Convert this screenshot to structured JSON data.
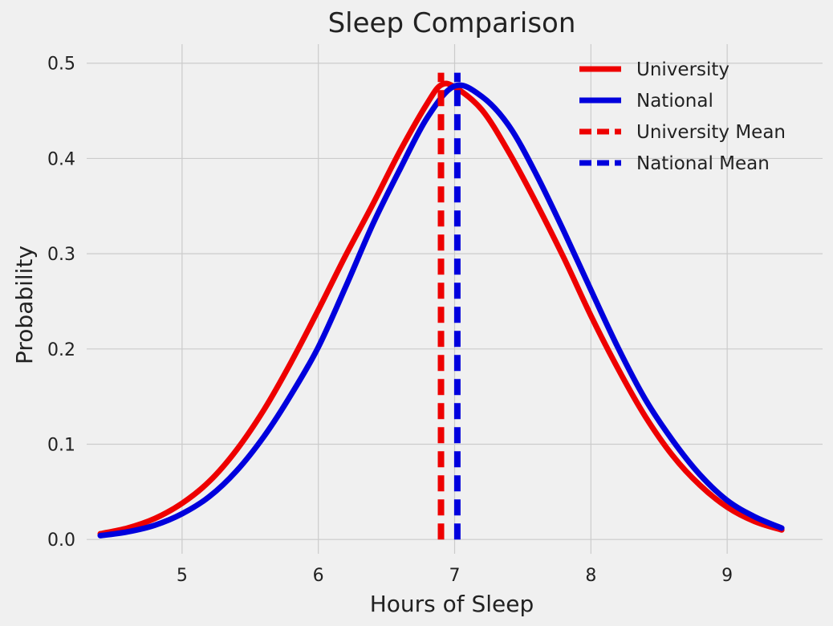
{
  "chart_data": {
    "type": "line",
    "title": "Sleep Comparison",
    "xlabel": "Hours of Sleep",
    "ylabel": "Probability",
    "xlim": [
      4.3,
      9.7
    ],
    "ylim": [
      -0.015,
      0.52
    ],
    "xticks": [
      5,
      6,
      7,
      8,
      9
    ],
    "yticks": [
      0.0,
      0.1,
      0.2,
      0.3,
      0.4,
      0.5
    ],
    "xtick_labels": [
      "5",
      "6",
      "7",
      "8",
      "9"
    ],
    "ytick_labels": [
      "0.0",
      "0.1",
      "0.2",
      "0.3",
      "0.4",
      "0.5"
    ],
    "grid": true,
    "legend_position": "top-right",
    "series": [
      {
        "name": "University",
        "style": "solid",
        "color": "#ee0000",
        "x": [
          4.4,
          4.6,
          4.8,
          5.0,
          5.2,
          5.4,
          5.6,
          5.8,
          6.0,
          6.2,
          6.4,
          6.6,
          6.8,
          6.9,
          7.0,
          7.2,
          7.4,
          7.6,
          7.8,
          8.0,
          8.2,
          8.4,
          8.6,
          8.8,
          9.0,
          9.2,
          9.4
        ],
        "y": [
          0.006,
          0.012,
          0.022,
          0.038,
          0.061,
          0.094,
          0.136,
          0.186,
          0.241,
          0.298,
          0.352,
          0.408,
          0.458,
          0.477,
          0.475,
          0.451,
          0.406,
          0.353,
          0.296,
          0.235,
          0.179,
          0.129,
          0.088,
          0.057,
          0.034,
          0.019,
          0.01
        ]
      },
      {
        "name": "National",
        "style": "solid",
        "color": "#0000dd",
        "x": [
          4.4,
          4.6,
          4.8,
          5.0,
          5.2,
          5.4,
          5.6,
          5.8,
          6.0,
          6.2,
          6.4,
          6.6,
          6.8,
          7.0,
          7.2,
          7.4,
          7.6,
          7.8,
          8.0,
          8.2,
          8.4,
          8.6,
          8.8,
          9.0,
          9.2,
          9.4
        ],
        "y": [
          0.004,
          0.008,
          0.015,
          0.027,
          0.045,
          0.072,
          0.108,
          0.152,
          0.202,
          0.265,
          0.331,
          0.389,
          0.443,
          0.476,
          0.465,
          0.434,
          0.383,
          0.324,
          0.262,
          0.201,
          0.147,
          0.104,
          0.068,
          0.041,
          0.024,
          0.012
        ]
      },
      {
        "name": "University Mean",
        "style": "dashed",
        "color": "#ee0000",
        "x": [
          6.9,
          6.9
        ],
        "y": [
          0.0,
          0.49
        ]
      },
      {
        "name": "National Mean",
        "style": "dashed",
        "color": "#0000dd",
        "x": [
          7.02,
          7.02
        ],
        "y": [
          0.0,
          0.49
        ]
      }
    ]
  }
}
